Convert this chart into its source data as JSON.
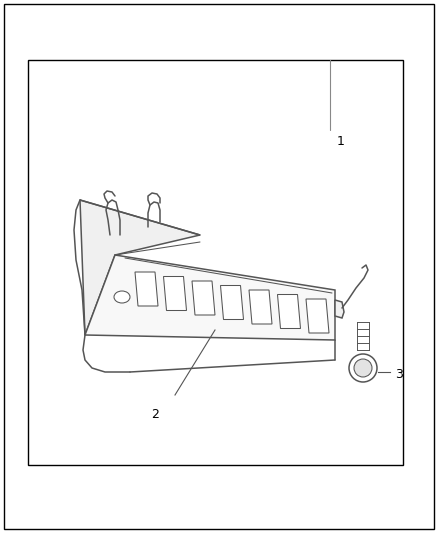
{
  "background_color": "#ffffff",
  "line_color": "#555555",
  "figure_width": 4.38,
  "figure_height": 5.33,
  "dpi": 100,
  "callout_1_label": "1",
  "callout_2_label": "2",
  "callout_3_label": "3"
}
